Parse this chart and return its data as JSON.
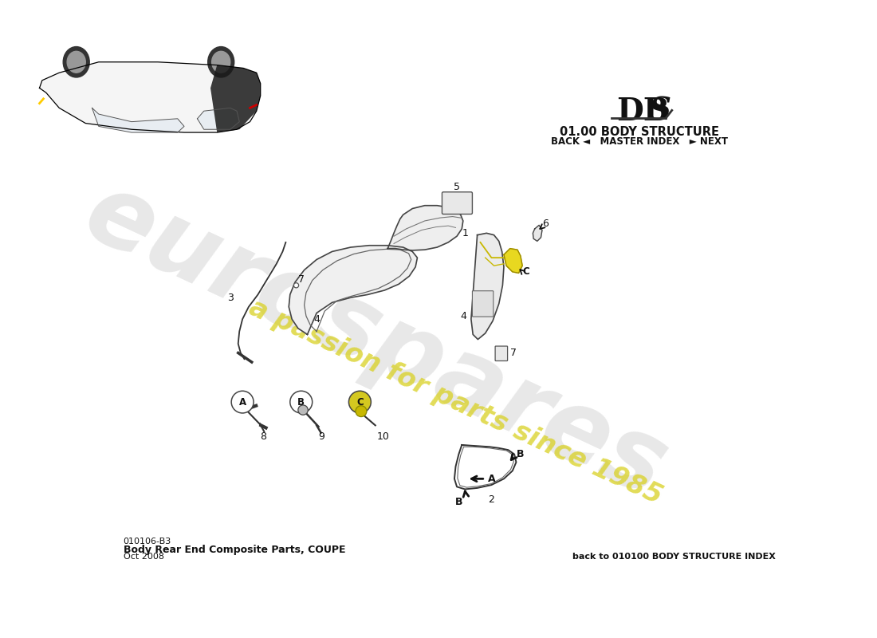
{
  "title_section": "01.00 BODY STRUCTURE",
  "nav_text": "BACK ◄   MASTER INDEX   ► NEXT",
  "footer_code": "010106-B3",
  "footer_desc": "Body Rear End Composite Parts, COUPE",
  "footer_date": "Oct 2008",
  "footer_back": "back to 010100 BODY STRUCTURE INDEX",
  "watermark_top": "eurospares",
  "watermark_bottom": "a passion for parts since 1985",
  "bg_color": "#ffffff"
}
